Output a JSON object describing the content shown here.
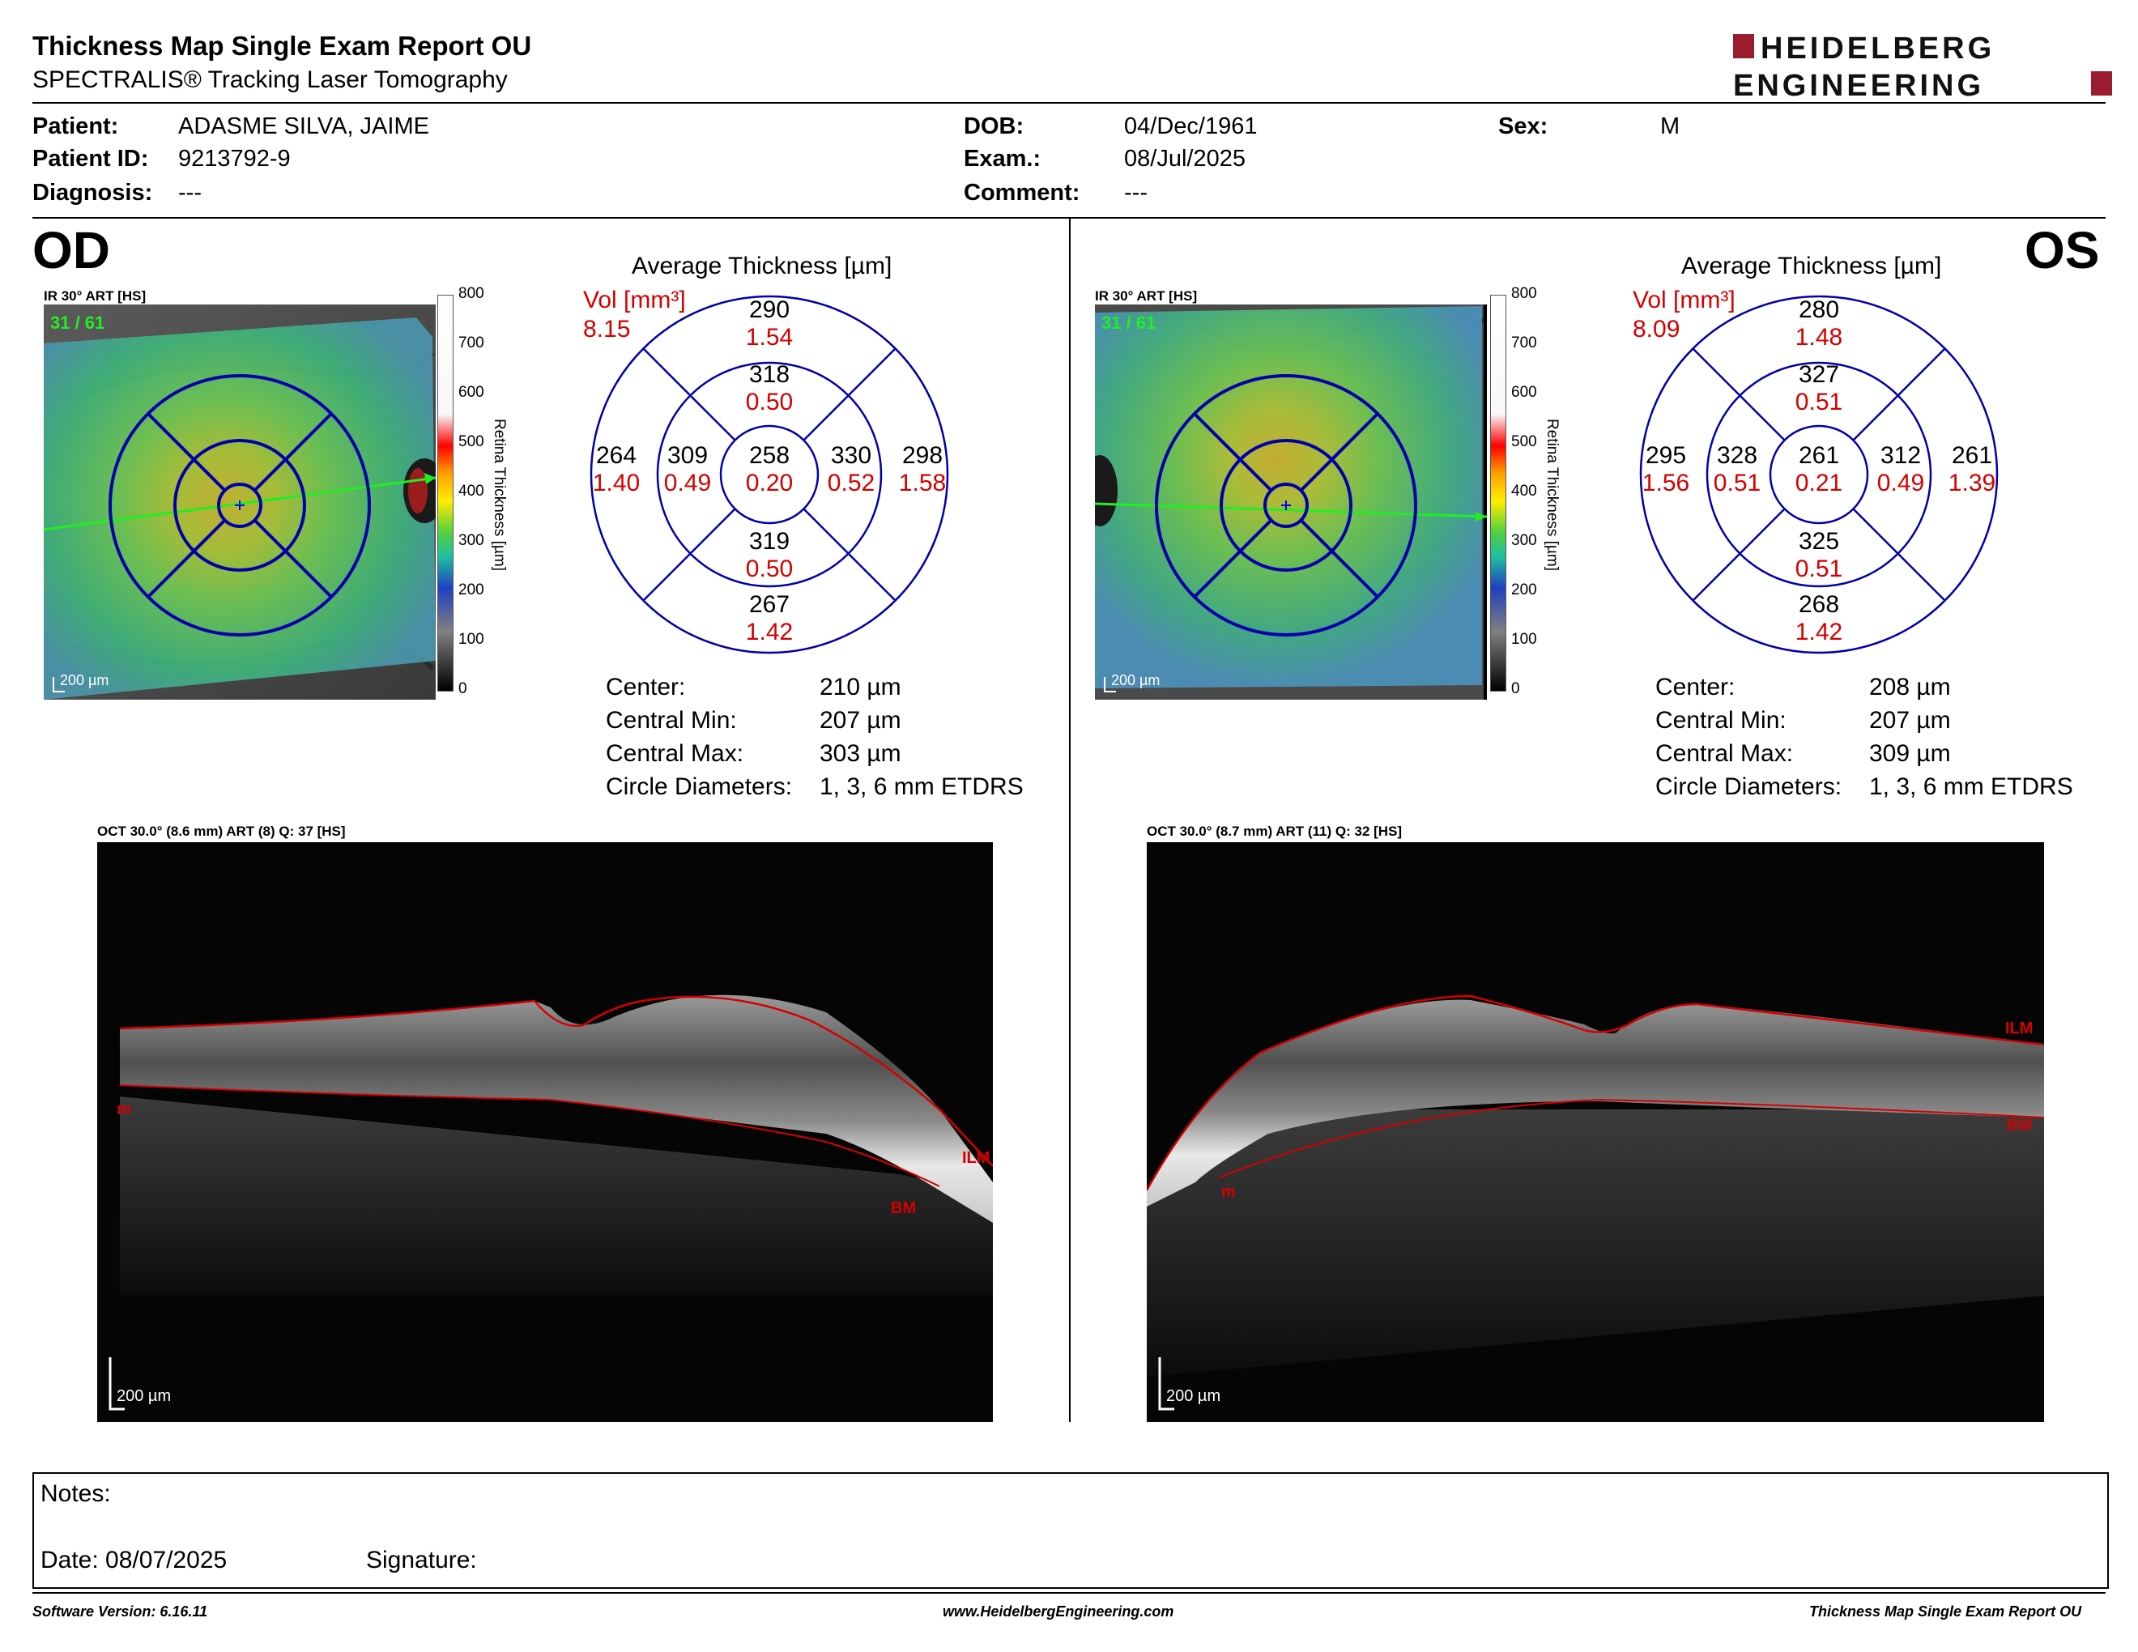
{
  "header": {
    "title": "Thickness Map Single Exam Report OU",
    "subtitle": "SPECTRALIS® Tracking Laser Tomography",
    "logo_line1": "HEIDELBERG",
    "logo_line2": "ENGINEERING"
  },
  "patient": {
    "patient_label": "Patient:",
    "patient": "ADASME SILVA, JAIME",
    "id_label": "Patient ID:",
    "id": "9213792-9",
    "diagnosis_label": "Diagnosis:",
    "diagnosis": "---",
    "dob_label": "DOB:",
    "dob": "04/Dec/1961",
    "exam_label": "Exam.:",
    "exam": "08/Jul/2025",
    "comment_label": "Comment:",
    "comment": "---",
    "sex_label": "Sex:",
    "sex": "M"
  },
  "colorbar": {
    "ticks": [
      "800",
      "700",
      "600",
      "500",
      "400",
      "300",
      "200",
      "100",
      "0"
    ],
    "label": "Retina  Thickness [µm]"
  },
  "od": {
    "eye": "OD",
    "ir_label": "IR 30° ART [HS]",
    "frame_count": "31 / 61",
    "ir_scale": "200 µm",
    "chart_title": "Average Thickness [µm]",
    "vol_label": "Vol [mm³]",
    "vol_total": "8.15",
    "sectors": {
      "outer_sup": {
        "t": "290",
        "v": "1.54"
      },
      "inner_sup": {
        "t": "318",
        "v": "0.50"
      },
      "outer_temp": {
        "t": "264",
        "v": "1.40"
      },
      "inner_temp": {
        "t": "309",
        "v": "0.49"
      },
      "center": {
        "t": "258",
        "v": "0.20"
      },
      "inner_nas": {
        "t": "330",
        "v": "0.52"
      },
      "outer_nas": {
        "t": "298",
        "v": "1.58"
      },
      "inner_inf": {
        "t": "319",
        "v": "0.50"
      },
      "outer_inf": {
        "t": "267",
        "v": "1.42"
      }
    },
    "stats": [
      {
        "label": "Center:",
        "value": "210 µm"
      },
      {
        "label": "Central Min:",
        "value": "207 µm"
      },
      {
        "label": "Central Max:",
        "value": "303 µm"
      },
      {
        "label": "Circle Diameters:",
        "value": "1, 3, 6 mm ETDRS"
      }
    ],
    "oct_label": "OCT 30.0° (8.6 mm) ART (8) Q: 37 [HS]",
    "oct_scale": "200 µm",
    "layer_ilm": "ILM",
    "layer_bm": "BM",
    "layer_m": "m"
  },
  "os": {
    "eye": "OS",
    "ir_label": "IR 30° ART [HS]",
    "frame_count": "31 / 61",
    "ir_scale": "200 µm",
    "chart_title": "Average Thickness [µm]",
    "vol_label": "Vol [mm³]",
    "vol_total": "8.09",
    "sectors": {
      "outer_sup": {
        "t": "280",
        "v": "1.48"
      },
      "inner_sup": {
        "t": "327",
        "v": "0.51"
      },
      "outer_temp": {
        "t": "295",
        "v": "1.56"
      },
      "inner_temp": {
        "t": "328",
        "v": "0.51"
      },
      "center": {
        "t": "261",
        "v": "0.21"
      },
      "inner_nas": {
        "t": "312",
        "v": "0.49"
      },
      "outer_nas": {
        "t": "261",
        "v": "1.39"
      },
      "inner_inf": {
        "t": "325",
        "v": "0.51"
      },
      "outer_inf": {
        "t": "268",
        "v": "1.42"
      }
    },
    "stats": [
      {
        "label": "Center:",
        "value": "208 µm"
      },
      {
        "label": "Central Min:",
        "value": "207 µm"
      },
      {
        "label": "Central Max:",
        "value": "309 µm"
      },
      {
        "label": "Circle Diameters:",
        "value": "1, 3, 6 mm ETDRS"
      }
    ],
    "oct_label": "OCT 30.0° (8.7 mm) ART (11) Q: 32 [HS]",
    "oct_scale": "200 µm",
    "layer_ilm": "ILM",
    "layer_bm": "BM",
    "layer_m": "m"
  },
  "notes": {
    "notes_label": "Notes:",
    "date_label": "Date: 08/07/2025",
    "signature_label": "Signature:"
  },
  "footer": {
    "software": "Software Version: 6.16.11",
    "website": "www.HeidelbergEngineering.com",
    "report": "Thickness Map Single Exam Report OU"
  },
  "colors": {
    "accent_red": "#d40000",
    "grid_blue": "#0000aa",
    "logo_red": "#9b1b30"
  }
}
